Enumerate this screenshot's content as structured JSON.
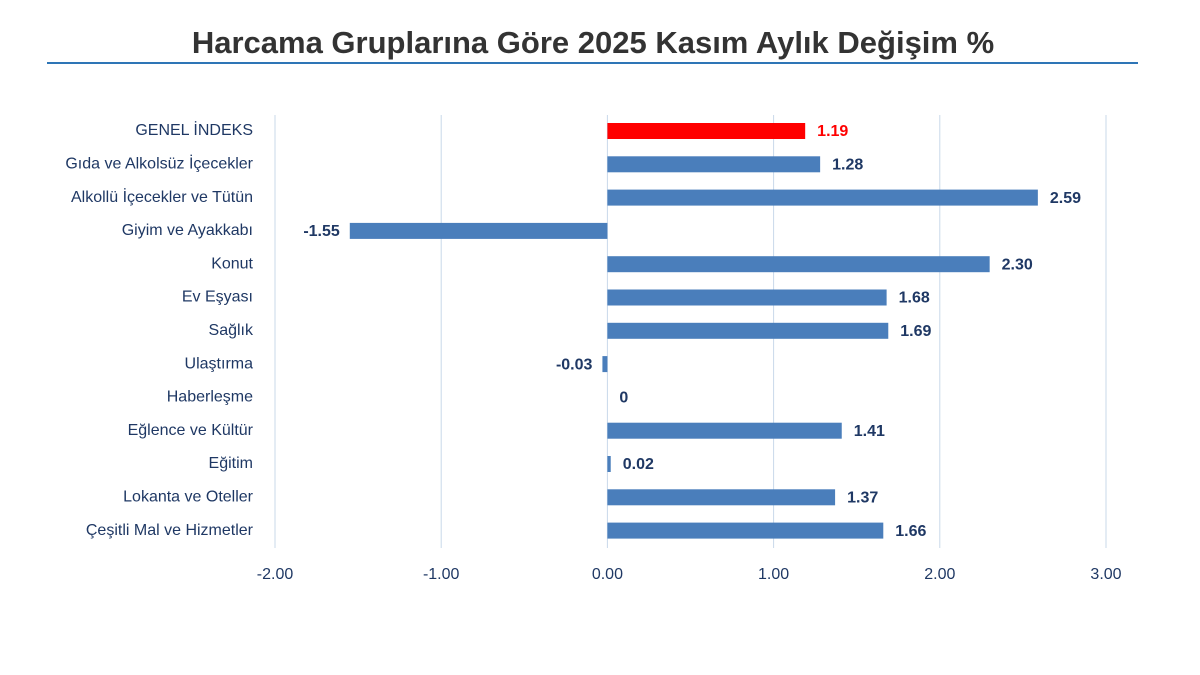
{
  "chart_data": {
    "type": "hbar",
    "title": "Harcama Gruplarına Göre 2025 Kasım Aylık Değişim %",
    "categories": [
      "GENEL İNDEKS",
      "Gıda ve Alkolsüz İçecekler",
      "Alkollü İçecekler ve Tütün",
      "Giyim ve Ayakkabı",
      "Konut",
      "Ev Eşyası",
      "Sağlık",
      "Ulaştırma",
      "Haberleşme",
      "Eğlence ve Kültür",
      "Eğitim",
      "Lokanta ve Oteller",
      "Çeşitli Mal ve Hizmetler"
    ],
    "values": [
      1.19,
      1.28,
      2.59,
      -1.55,
      2.3,
      1.68,
      1.69,
      -0.03,
      0,
      1.41,
      0.02,
      1.37,
      1.66
    ],
    "value_labels": [
      "1.19",
      "1.28",
      "2.59",
      "-1.55",
      "2.30",
      "1.68",
      "1.69",
      "-0.03",
      "0",
      "1.41",
      "0.02",
      "1.37",
      "1.66"
    ],
    "colors": [
      "#ff0000",
      "#4a7ebb",
      "#4a7ebb",
      "#4a7ebb",
      "#4a7ebb",
      "#4a7ebb",
      "#4a7ebb",
      "#4a7ebb",
      "#4a7ebb",
      "#4a7ebb",
      "#4a7ebb",
      "#4a7ebb",
      "#4a7ebb"
    ],
    "xlim": [
      -2,
      3
    ],
    "xticks": [
      {
        "value": -2,
        "label": "-2.00"
      },
      {
        "value": -1,
        "label": "-1.00"
      },
      {
        "value": 0,
        "label": "0.00"
      },
      {
        "value": 1,
        "label": "1.00"
      },
      {
        "value": 2,
        "label": "2.00"
      },
      {
        "value": 3,
        "label": "3.00"
      }
    ],
    "grid": true
  }
}
